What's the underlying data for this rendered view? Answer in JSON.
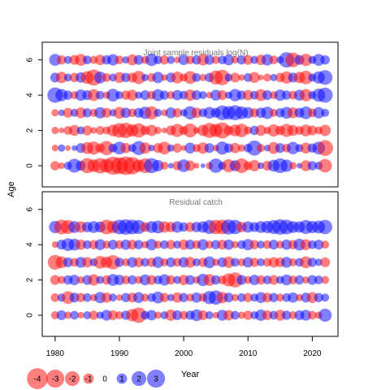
{
  "chart_data": {
    "type": "scatter",
    "encoding": "bubble size = |residual|, red = negative, blue = positive",
    "ylabel": "Age",
    "xlabel": "Year",
    "years_range": [
      1978,
      2024
    ],
    "x_ticks": [
      1980,
      1990,
      2000,
      2010,
      2020
    ],
    "panels": [
      {
        "title": "Joint sample residuals log(N)",
        "ages": [
          0,
          1,
          2,
          3,
          4,
          5,
          6
        ],
        "y_ticks": [
          0,
          2,
          4,
          6
        ],
        "ylim": [
          -1.2,
          7.0
        ],
        "year_start": 1980,
        "year_end": 2022,
        "max_abs": 3.5,
        "residuals": {
          "0": [
            -0.8,
            -0.4,
            0.6,
            1.8,
            0.9,
            -2.1,
            -1.5,
            -2.2,
            -1.8,
            -3.0,
            -2.6,
            -3.2,
            -2.8,
            -1.4,
            -2.0,
            2.1,
            1.2,
            -0.6,
            0.3,
            -0.8,
            1.5,
            -1.0,
            -0.3,
            0.2,
            -0.5,
            1.9,
            0.6,
            -1.6,
            1.1,
            -2.0,
            -0.7,
            -1.2,
            0.4,
            -0.9,
            1.3,
            2.0,
            1.4,
            -0.5,
            0.3,
            -1.1,
            0.8,
            0.6,
            -1.7
          ],
          "1": [
            -0.4,
            0.5,
            -0.3,
            0.3,
            0.9,
            -1.3,
            -1.6,
            -0.8,
            -1.9,
            0.7,
            1.5,
            -1.0,
            0.6,
            1.8,
            -1.2,
            0.4,
            -0.9,
            -1.5,
            0.5,
            -0.8,
            -0.3,
            1.1,
            -0.6,
            -1.2,
            0.9,
            -0.4,
            1.6,
            0.8,
            -1.0,
            -0.5,
            0.7,
            2.1,
            -0.6,
            0.4,
            -1.3,
            0.9,
            -0.7,
            1.4,
            0.6,
            -1.1,
            0.8,
            1.5,
            -2.3
          ],
          "2": [
            -0.5,
            -0.3,
            -0.7,
            -1.1,
            0.6,
            -0.9,
            -0.4,
            -0.7,
            -0.6,
            -1.3,
            -2.0,
            -2.2,
            -1.4,
            -1.9,
            -0.8,
            -1.2,
            -0.5,
            -0.3,
            -0.9,
            -1.6,
            -0.7,
            -1.8,
            -0.4,
            -1.2,
            -2.1,
            -1.6,
            -2.4,
            -0.9,
            -1.3,
            -1.7,
            -0.6,
            0.8,
            -1.1,
            -0.5,
            -1.4,
            -0.8,
            -1.6,
            -1.1,
            -0.7,
            -1.3,
            -0.9,
            -0.6,
            -1.2
          ],
          "3": [
            -0.5,
            0.4,
            -0.9,
            0.6,
            -1.1,
            0.8,
            -0.6,
            1.2,
            -0.9,
            0.5,
            -1.3,
            1.0,
            -0.7,
            0.9,
            1.4,
            -1.6,
            0.6,
            -0.4,
            1.1,
            -0.8,
            0.5,
            1.6,
            -1.0,
            0.7,
            1.3,
            0.9,
            2.0,
            1.7,
            2.1,
            1.5,
            1.2,
            -0.8,
            1.0,
            1.4,
            -0.6,
            0.8,
            1.3,
            -1.1,
            0.9,
            1.5,
            -0.7,
            1.2,
            0.6
          ],
          "4": [
            2.2,
            1.4,
            0.8,
            -0.6,
            1.2,
            0.9,
            -1.3,
            0.7,
            -0.5,
            1.5,
            0.6,
            -0.8,
            -1.1,
            0.5,
            0.9,
            -0.7,
            1.3,
            0.8,
            -0.6,
            1.0,
            0.7,
            -1.2,
            0.9,
            0.6,
            -0.4,
            1.1,
            -0.9,
            0.5,
            1.4,
            0.8,
            -1.0,
            0.7,
            -1.3,
            0.9,
            -0.6,
            1.2,
            0.8,
            -0.7,
            1.1,
            -1.4,
            0.6,
            1.6,
            2.1
          ],
          "5": [
            0.9,
            -1.2,
            0.6,
            -0.8,
            1.0,
            -1.5,
            -2.4,
            1.3,
            -0.7,
            0.6,
            -1.1,
            0.8,
            -0.9,
            -1.6,
            0.5,
            -0.7,
            1.2,
            -0.4,
            0.9,
            -1.3,
            -0.6,
            -1.5,
            0.7,
            -0.5,
            0.8,
            -1.8,
            -2.2,
            0.6,
            -0.9,
            -0.4,
            0.7,
            -1.1,
            -0.3,
            -0.6,
            0.5,
            -0.8,
            -1.4,
            0.9,
            -1.2,
            -1.7,
            0.6,
            1.4,
            2.0
          ],
          "6": [
            1.3,
            -0.8,
            0.6,
            -0.9,
            -1.3,
            0.7,
            -0.6,
            -1.0,
            0.8,
            1.2,
            -0.7,
            0.5,
            -1.1,
            0.9,
            -0.6,
            1.4,
            0.7,
            -0.8,
            0.6,
            -0.4,
            1.0,
            -0.7,
            0.8,
            -1.2,
            0.9,
            -0.6,
            0.7,
            1.1,
            -0.5,
            0.8,
            -0.9,
            0.6,
            -1.0,
            1.2,
            -0.7,
            0.5,
            2.2,
            -2.0,
            0.9,
            -1.4,
            0.6,
            1.3,
            0.8
          ]
        }
      },
      {
        "title": "Residual catch",
        "ages": [
          0,
          1,
          2,
          3,
          4,
          5
        ],
        "y_ticks": [
          0,
          2,
          4,
          6
        ],
        "ylim": [
          -1.2,
          7.0
        ],
        "year_start": 1980,
        "year_end": 2022,
        "max_abs": 3.5,
        "residuals": {
          "0": [
            -0.6,
            0.9,
            -0.5,
            0.7,
            -0.4,
            0.6,
            -0.8,
            0.5,
            1.1,
            -0.9,
            -0.6,
            0.8,
            -1.4,
            -2.2,
            0.7,
            1.0,
            -0.5,
            0.6,
            -1.2,
            0.9,
            -0.7,
            0.8,
            1.3,
            -0.9,
            0.6,
            -0.4,
            1.1,
            -1.0,
            0.7,
            -0.5,
            -0.8,
            0.6,
            1.2,
            -0.9,
            0.7,
            -1.1,
            0.8,
            -0.6,
            0.9,
            1.1,
            -0.7,
            -0.5,
            1.6
          ],
          "1": [
            -0.7,
            0.6,
            -1.5,
            0.9,
            -0.8,
            0.7,
            -0.5,
            1.2,
            -1.0,
            0.6,
            -0.4,
            0.8,
            -0.9,
            1.1,
            -0.6,
            0.7,
            1.3,
            -0.8,
            0.5,
            -1.0,
            0.8,
            -0.6,
            1.0,
            -0.7,
            1.6,
            1.9,
            -1.2,
            0.9,
            -0.5,
            0.7,
            -0.8,
            0.6,
            1.1,
            -0.9,
            0.8,
            -0.6,
            0.7,
            1.0,
            -0.5,
            0.9,
            -1.1,
            0.8,
            0.6
          ],
          "2": [
            -0.9,
            -0.6,
            0.8,
            1.0,
            -0.5,
            0.9,
            -1.2,
            0.6,
            -0.8,
            1.3,
            1.0,
            -0.7,
            0.8,
            -0.6,
            1.1,
            -0.9,
            0.7,
            1.2,
            -0.8,
            0.6,
            -1.0,
            0.9,
            -0.5,
            1.4,
            -1.3,
            0.8,
            -0.7,
            -1.6,
            -2.1,
            0.9,
            -0.6,
            1.0,
            -0.8,
            0.7,
            -0.9,
            0.6,
            1.1,
            -0.7,
            0.8,
            -0.5,
            0.9,
            0.7,
            -0.6
          ],
          "3": [
            -2.0,
            -1.3,
            0.9,
            -0.7,
            1.1,
            -1.0,
            0.6,
            -1.5,
            -1.2,
            -1.9,
            0.8,
            -0.6,
            1.0,
            -0.9,
            0.7,
            -0.8,
            1.2,
            -0.6,
            0.9,
            -0.7,
            1.0,
            -1.1,
            0.6,
            -0.8,
            1.3,
            -0.5,
            0.9,
            -1.2,
            0.7,
            -0.6,
            1.0,
            -0.8,
            0.6,
            -0.7,
            -1.0,
            -0.9,
            1.1,
            -0.6,
            0.7,
            -1.3,
            0.8,
            0.5,
            -0.9
          ],
          "4": [
            -0.4,
            0.9,
            1.5,
            1.3,
            -1.0,
            0.7,
            -0.8,
            1.1,
            -0.6,
            0.9,
            -0.7,
            1.0,
            -0.9,
            0.8,
            -0.5,
            1.2,
            -0.6,
            0.7,
            -0.8,
            0.6,
            -1.0,
            0.9,
            -0.7,
            1.1,
            -0.6,
            0.8,
            -0.9,
            1.0,
            -0.5,
            0.7,
            1.2,
            -0.8,
            0.6,
            -0.7,
            0.9,
            -0.6,
            1.0,
            -0.8,
            1.3,
            -1.1,
            0.7,
            0.9,
            -0.6
          ],
          "5": [
            1.4,
            -2.0,
            -1.8,
            1.3,
            -1.2,
            1.0,
            1.3,
            1.1,
            -2.0,
            -1.4,
            2.0,
            2.2,
            2.0,
            1.8,
            -0.9,
            1.3,
            1.5,
            -1.2,
            -1.0,
            1.2,
            0.8,
            -0.9,
            1.0,
            1.2,
            1.8,
            -1.9,
            -2.0,
            2.1,
            1.9,
            -1.0,
            1.2,
            0.9,
            1.3,
            1.4,
            1.8,
            2.2,
            2.0,
            1.3,
            1.2,
            1.8,
            1.4,
            1.5,
            1.9
          ]
        }
      }
    ],
    "legend": {
      "position": "bottom-left",
      "values": [
        -4,
        -3,
        -2,
        -1,
        0,
        1,
        2,
        3
      ],
      "labels": [
        "-4",
        "-3",
        "-2",
        "-1",
        "0",
        "1",
        "2",
        "3"
      ]
    },
    "colors": {
      "negative": "#ff0000",
      "positive": "#0000ff",
      "title_text": "#777777",
      "axis": "#000000"
    }
  }
}
